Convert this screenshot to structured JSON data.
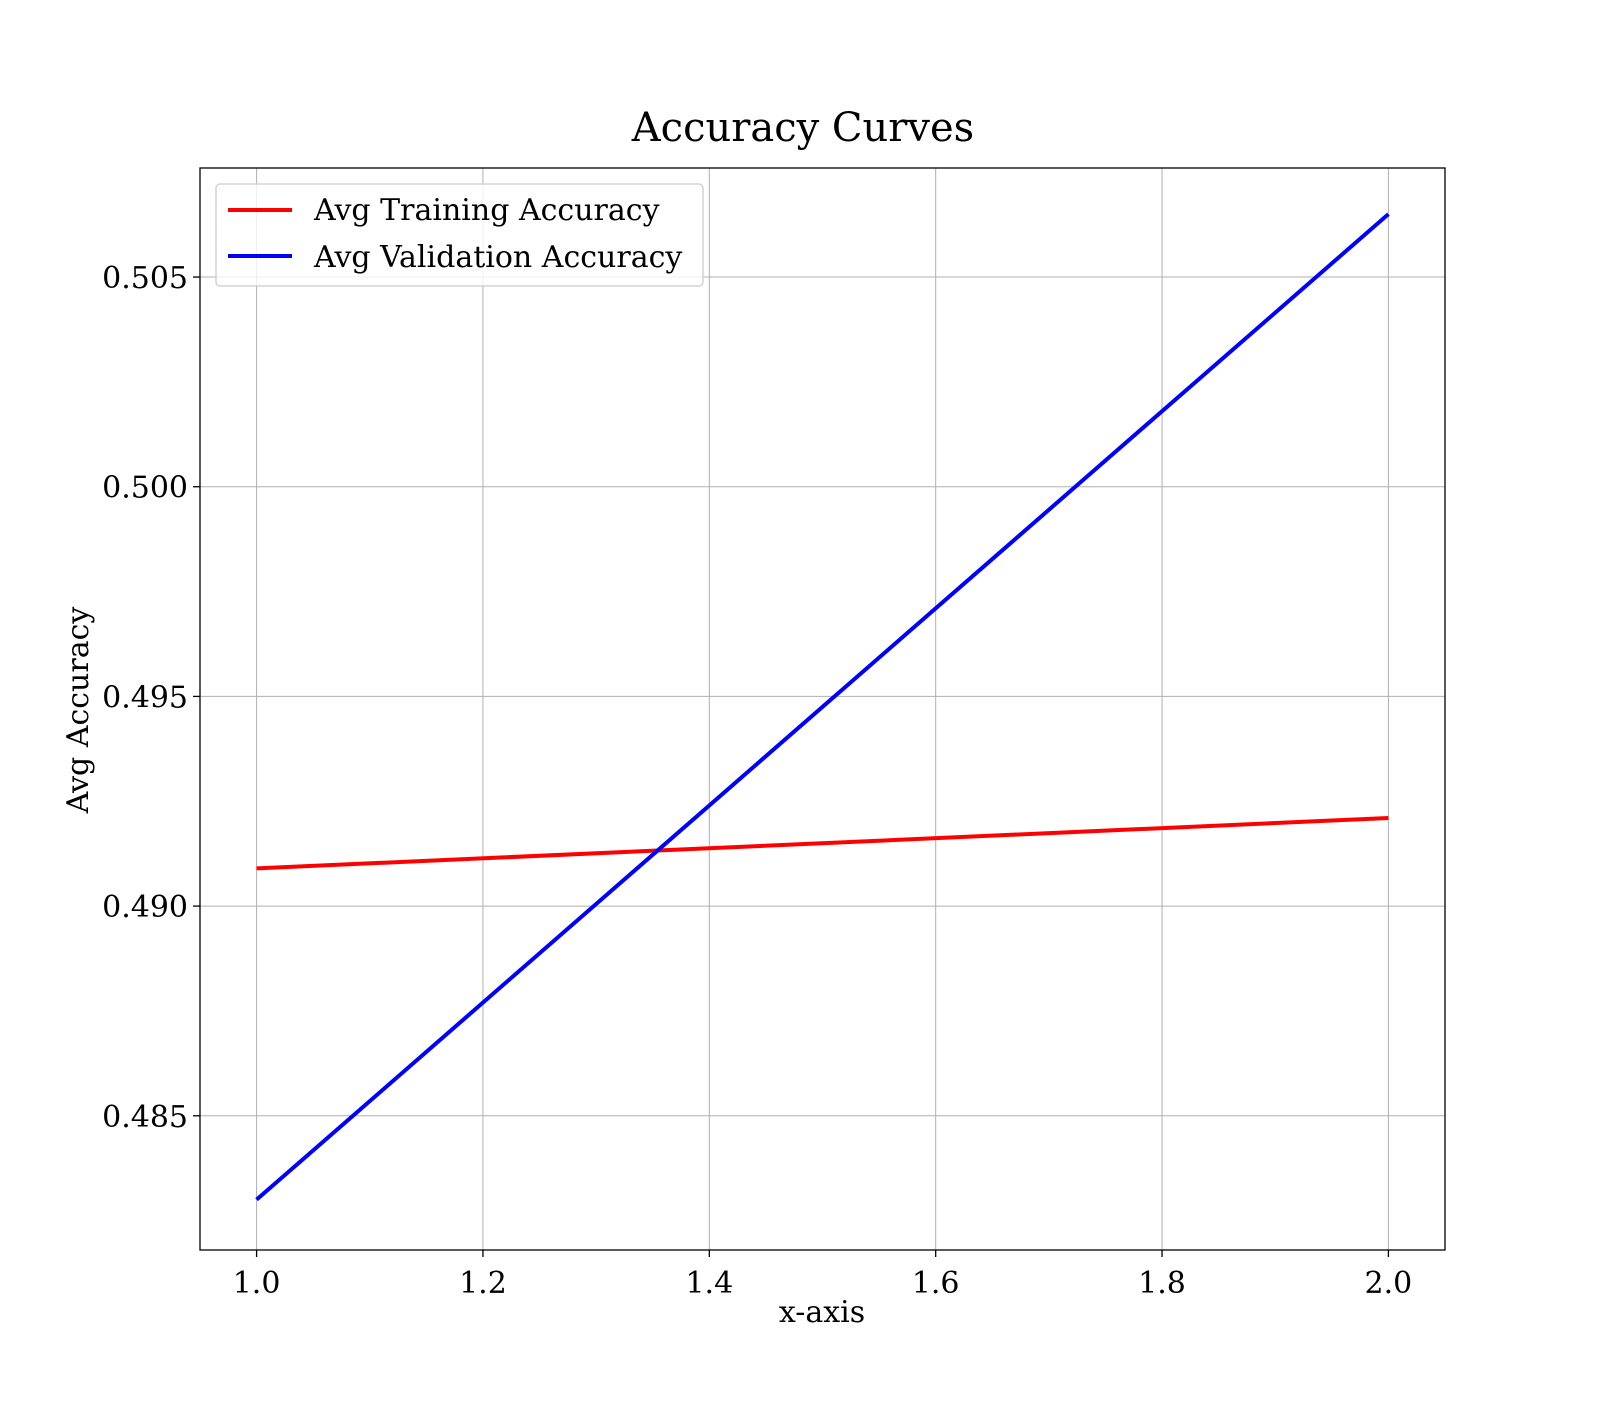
{
  "chart_data": {
    "type": "line",
    "title": "Accuracy Curves",
    "xlabel": "x-axis",
    "ylabel": "Avg Accuracy",
    "xlim": [
      0.95,
      2.05
    ],
    "ylim": [
      0.4818,
      0.5076
    ],
    "x_ticks": [
      1.0,
      1.2,
      1.4,
      1.6,
      1.8,
      2.0
    ],
    "x_tick_labels": [
      "1.0",
      "1.2",
      "1.4",
      "1.6",
      "1.8",
      "2.0"
    ],
    "y_ticks": [
      0.485,
      0.49,
      0.495,
      0.5,
      0.505
    ],
    "y_tick_labels": [
      "0.485",
      "0.490",
      "0.495",
      "0.500",
      "0.505"
    ],
    "grid": true,
    "legend_position": "upper-left",
    "series": [
      {
        "name": "Avg Training Accuracy",
        "color": "#ff0000",
        "x": [
          1.0,
          2.0
        ],
        "y": [
          0.4909,
          0.4921
        ]
      },
      {
        "name": "Avg Validation Accuracy",
        "color": "#0000ff",
        "x": [
          1.0,
          2.0
        ],
        "y": [
          0.483,
          0.5065
        ]
      }
    ]
  }
}
